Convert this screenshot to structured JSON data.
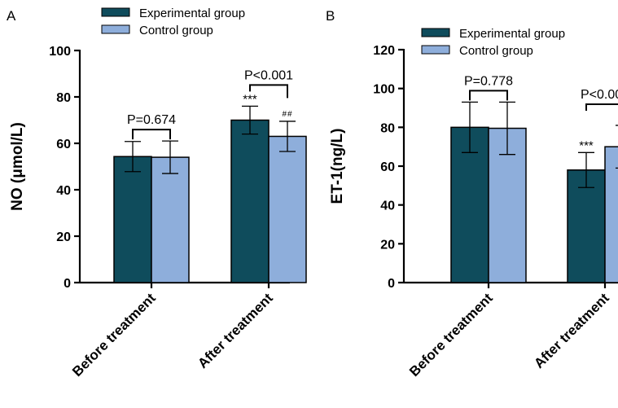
{
  "colors": {
    "experimental": "#0f4c5c",
    "control": "#8eaedb"
  },
  "chart_data": [
    {
      "panel": "A",
      "type": "bar",
      "ylabel": "NO (μmol/L)",
      "ylim": [
        0,
        100
      ],
      "yticks": [
        0,
        20,
        40,
        60,
        80,
        100
      ],
      "categories": [
        "Before treatment",
        "After treatment"
      ],
      "legend": [
        "Experimental group",
        "Control group"
      ],
      "series": [
        {
          "name": "Experimental group",
          "values": [
            54.3,
            70.0
          ],
          "errors": [
            6.5,
            6.0
          ]
        },
        {
          "name": "Control group",
          "values": [
            54.0,
            63.0
          ],
          "errors": [
            7.0,
            6.5
          ]
        }
      ],
      "comparisons": [
        {
          "category": 0,
          "label": "P=0.674"
        },
        {
          "category": 1,
          "label": "P<0.001"
        }
      ],
      "annotations": [
        {
          "category": 1,
          "series": 0,
          "text": "***"
        },
        {
          "category": 1,
          "series": 1,
          "text": "##"
        }
      ]
    },
    {
      "panel": "B",
      "type": "bar",
      "ylabel": "ET-1(ng/L)",
      "ylim": [
        0,
        120
      ],
      "yticks": [
        0,
        20,
        40,
        60,
        80,
        100,
        120
      ],
      "categories": [
        "Before treatment",
        "After treatment"
      ],
      "legend": [
        "Experimental group",
        "Control group"
      ],
      "series": [
        {
          "name": "Experimental group",
          "values": [
            80.0,
            58.0
          ],
          "errors": [
            13.0,
            9.0
          ]
        },
        {
          "name": "Control group",
          "values": [
            79.5,
            70.0
          ],
          "errors": [
            13.5,
            11.0
          ]
        }
      ],
      "comparisons": [
        {
          "category": 0,
          "label": "P=0.778"
        },
        {
          "category": 1,
          "label": "P<0.001"
        }
      ],
      "annotations": [
        {
          "category": 1,
          "series": 0,
          "text": "***"
        },
        {
          "category": 1,
          "series": 1,
          "text": "##"
        }
      ]
    }
  ]
}
